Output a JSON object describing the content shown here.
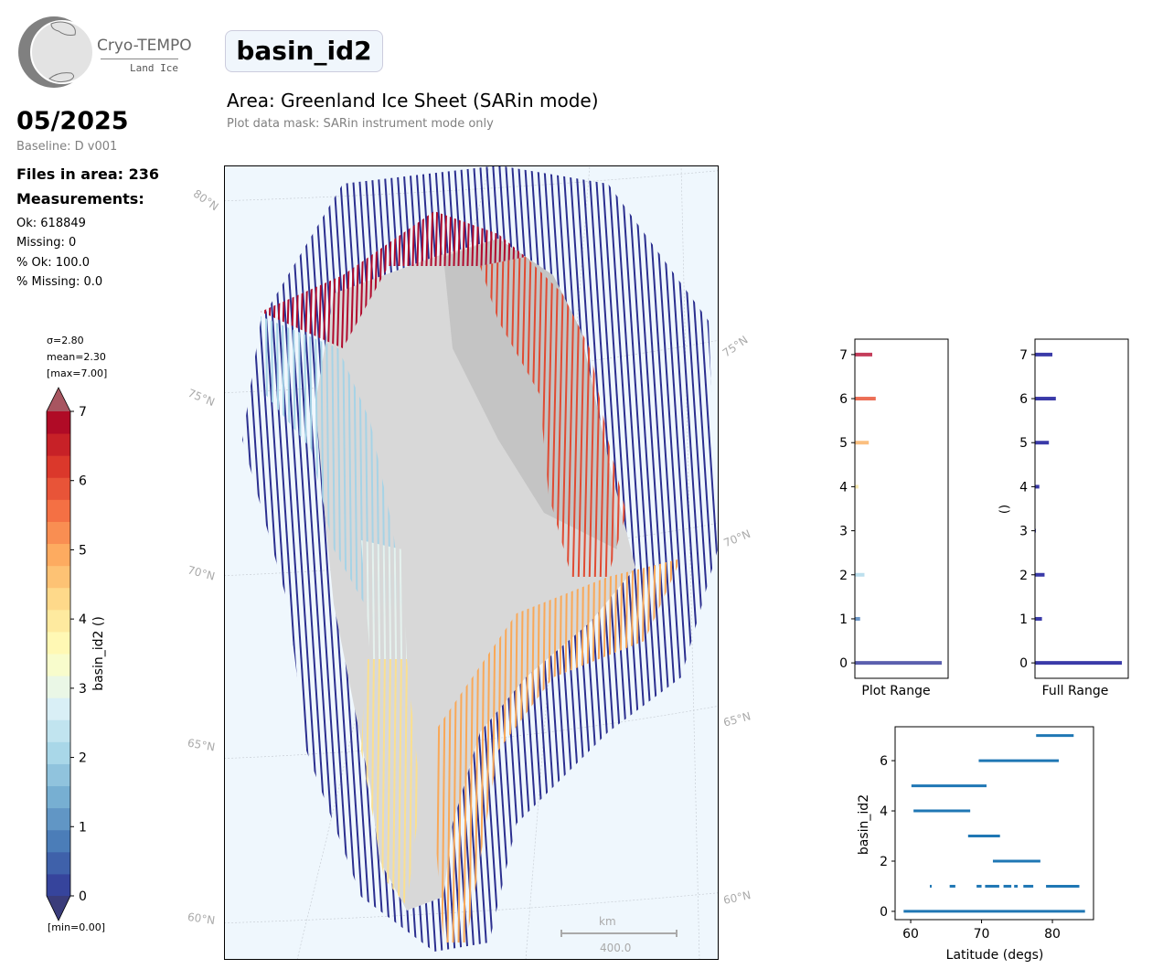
{
  "logo": {
    "name": "Cryo-TEMPO",
    "subtitle": "Land Ice"
  },
  "header": {
    "variable": "basin_id2",
    "area_title": "Area: Greenland Ice Sheet (SARin mode)",
    "mask_note": "Plot data mask: SARin instrument mode only"
  },
  "summary": {
    "date": "05/2025",
    "baseline": "Baseline: D v001",
    "files": "Files in area: 236",
    "measurements_label": "Measurements:",
    "ok": "Ok: 618849",
    "missing": "Missing: 0",
    "pct_ok": "% Ok: 100.0",
    "pct_missing": "% Missing: 0.0"
  },
  "colorbar": {
    "sigma": "σ=2.80",
    "mean": "mean=2.30",
    "max": "[max=7.00]",
    "min": "[min=0.00]",
    "label": "basin_id2 ()",
    "ticks": [
      "0",
      "1",
      "2",
      "3",
      "4",
      "5",
      "6",
      "7"
    ],
    "colors": [
      "#313695",
      "#4575b4",
      "#74add1",
      "#abd9e9",
      "#e0f3f8",
      "#ffffbf",
      "#fee090",
      "#fdae61",
      "#f46d43",
      "#d73027",
      "#a50026"
    ]
  },
  "map": {
    "lat_labels_left": [
      "80°N",
      "75°N",
      "70°N",
      "65°N",
      "60°N"
    ],
    "lat_labels_right": [
      "75°N",
      "70°N",
      "65°N",
      "60°N"
    ],
    "scale_unit": "km",
    "scale_value": "400.0",
    "basin_colors": {
      "0": "#2b2f8f",
      "2": "#a6d3e6",
      "3": "#e5f2ee",
      "4": "#fbe08f",
      "5": "#f9a857",
      "6": "#e04a32",
      "7": "#b00a2c"
    }
  },
  "chart_data": [
    {
      "type": "bar",
      "orientation": "horizontal",
      "title": "",
      "xlabel": "Plot Range",
      "ylabel": "",
      "categories": [
        0,
        1,
        2,
        3,
        4,
        5,
        6,
        7
      ],
      "values": [
        1.0,
        0.06,
        0.11,
        0.0,
        0.04,
        0.16,
        0.24,
        0.2
      ],
      "bar_colors": [
        "#5b5fae",
        "#6d98c8",
        "#bde0ee",
        "#f5f5e0",
        "#fcebb0",
        "#fbbf7f",
        "#ec6e55",
        "#c43c5a"
      ],
      "ylim": [
        -0.35,
        7.35
      ]
    },
    {
      "type": "bar",
      "orientation": "horizontal",
      "title": "",
      "xlabel": "Full Range",
      "ylabel": "()",
      "categories": [
        0,
        1,
        2,
        3,
        4,
        5,
        6,
        7
      ],
      "values": [
        1.0,
        0.08,
        0.11,
        0.01,
        0.05,
        0.16,
        0.24,
        0.2
      ],
      "bar_colors": [
        "#3a3aa8",
        "#3a3aa8",
        "#3a3aa8",
        "#3a3aa8",
        "#3a3aa8",
        "#3a3aa8",
        "#3a3aa8",
        "#3a3aa8"
      ],
      "ylim": [
        -0.35,
        7.35
      ]
    },
    {
      "type": "scatter",
      "title": "",
      "xlabel": "Latitude (degs)",
      "ylabel": "basin_id2",
      "xlim": [
        57.8,
        85.8
      ],
      "ylim": [
        -0.33,
        7.35
      ],
      "xticks": [
        60,
        70,
        80
      ],
      "yticks": [
        0,
        2,
        4,
        6
      ],
      "color": "#1f77b4",
      "segments": [
        {
          "y": 0,
          "x": [
            59.0,
            84.6
          ]
        },
        {
          "y": 1,
          "x": [
            62.7,
            62.9
          ]
        },
        {
          "y": 1,
          "x": [
            65.5,
            66.3
          ]
        },
        {
          "y": 1,
          "x": [
            69.3,
            70.0
          ]
        },
        {
          "y": 1,
          "x": [
            70.5,
            72.5
          ]
        },
        {
          "y": 1,
          "x": [
            73.1,
            74.2
          ]
        },
        {
          "y": 1,
          "x": [
            74.6,
            75.1
          ]
        },
        {
          "y": 1,
          "x": [
            75.9,
            77.3
          ]
        },
        {
          "y": 1,
          "x": [
            79.1,
            83.8
          ]
        },
        {
          "y": 2,
          "x": [
            71.6,
            78.3
          ]
        },
        {
          "y": 3,
          "x": [
            68.1,
            72.6
          ]
        },
        {
          "y": 4,
          "x": [
            60.4,
            68.4
          ]
        },
        {
          "y": 5,
          "x": [
            60.1,
            70.7
          ]
        },
        {
          "y": 6,
          "x": [
            69.6,
            80.9
          ]
        },
        {
          "y": 7,
          "x": [
            77.7,
            83.0
          ]
        }
      ]
    }
  ]
}
